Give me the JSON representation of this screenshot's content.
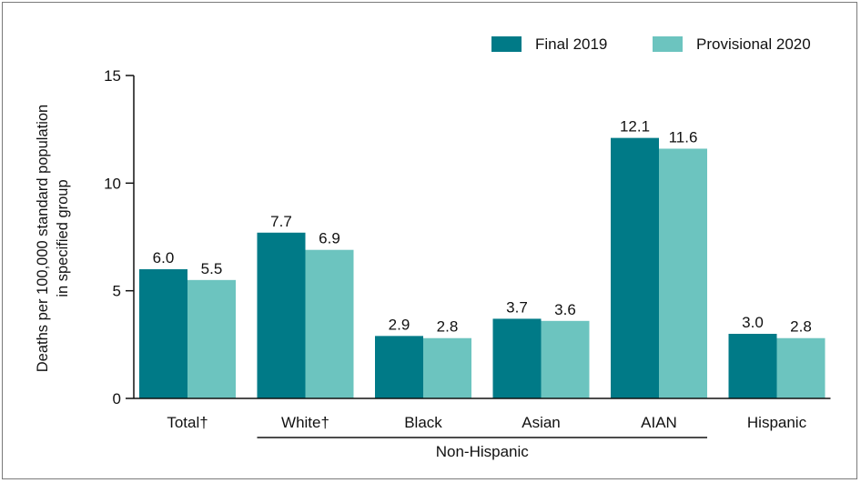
{
  "chart_data": {
    "type": "bar",
    "categories": [
      "Total†",
      "White†",
      "Black",
      "Asian",
      "AIAN",
      "Hispanic"
    ],
    "group_label": "Non-Hispanic",
    "series": [
      {
        "name": "Final 2019",
        "color": "#007a87",
        "values": [
          6.0,
          7.7,
          2.9,
          3.7,
          12.1,
          3.0
        ],
        "labels": [
          "6.0",
          "7.7",
          "2.9",
          "3.7",
          "12.1",
          "3.0"
        ]
      },
      {
        "name": "Provisional 2020",
        "color": "#6cc4bf",
        "values": [
          5.5,
          6.9,
          2.8,
          3.6,
          11.6,
          2.8
        ],
        "labels": [
          "5.5",
          "6.9",
          "2.8",
          "3.6",
          "11.6",
          "2.8"
        ]
      }
    ],
    "ylabel_lines": [
      "Deaths per 100,000 standard population",
      "in specified group"
    ],
    "ylim": [
      0,
      15
    ],
    "yticks": [
      0,
      5,
      10,
      15
    ],
    "ytick_labels": [
      "0",
      "5",
      "10",
      "15"
    ],
    "legend_position": "top-right",
    "grid": false
  }
}
